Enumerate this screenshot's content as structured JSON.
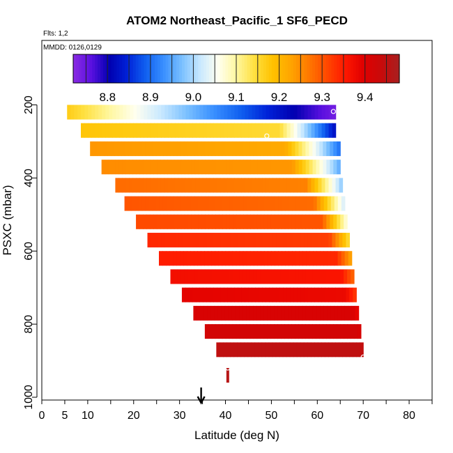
{
  "chart_data": {
    "type": "heatmap",
    "title": "ATOM2 Northeast_Pacific_1 SF6_PECD",
    "flights_label": "Flts: 1,2",
    "mmdd_label": "MMDD: 0126,0129",
    "xlabel": "Latitude (deg N)",
    "ylabel": "PSXC (mbar)",
    "xlim": [
      0,
      85
    ],
    "ylim": [
      1000,
      0
    ],
    "x_major_ticks": [
      0,
      5,
      10,
      20,
      30,
      40,
      50,
      60,
      70,
      80
    ],
    "x_minor_ticks": [
      15,
      25,
      35,
      45,
      55,
      65,
      75,
      85
    ],
    "y_ticks": [
      200,
      400,
      600,
      800,
      1000
    ],
    "colorbar": {
      "range": [
        8.72,
        9.48
      ],
      "tick_values": [
        8.8,
        8.9,
        9.0,
        9.1,
        9.2,
        9.3,
        9.4
      ],
      "tick_labels": [
        "8.8",
        "8.9",
        "9.0",
        "9.1",
        "9.2",
        "9.3",
        "9.4"
      ],
      "colors": [
        "#8a2be2",
        "#5a10e0",
        "#0000b0",
        "#0022d8",
        "#1060f0",
        "#3a90ff",
        "#7ac0ff",
        "#c8e8ff",
        "#fffff0",
        "#fff7a0",
        "#ffe040",
        "#ffc200",
        "#ffa500",
        "#ff7800",
        "#ff4800",
        "#ff1800",
        "#e00000",
        "#c80a0a",
        "#a82020"
      ]
    },
    "arrow_latitude": 34.7,
    "rows": [
      {
        "p": 220,
        "lat_start": 5.5,
        "lat_end": 64,
        "value_start": 9.17,
        "value_mid": 8.95,
        "value_end": 8.74,
        "transition": 0.5
      },
      {
        "p": 270,
        "lat_start": 8.5,
        "lat_end": 64,
        "value_start": 9.18,
        "value_mid": 9.15,
        "value_end": 8.82,
        "transition": 0.78
      },
      {
        "p": 320,
        "lat_start": 10.5,
        "lat_end": 65,
        "value_start": 9.24,
        "value_mid": 9.22,
        "value_end": 8.9,
        "transition": 0.78
      },
      {
        "p": 370,
        "lat_start": 13,
        "lat_end": 65,
        "value_start": 9.25,
        "value_mid": 9.24,
        "value_end": 8.95,
        "transition": 0.8
      },
      {
        "p": 420,
        "lat_start": 16,
        "lat_end": 65.5,
        "value_start": 9.28,
        "value_mid": 9.26,
        "value_end": 8.98,
        "transition": 0.84
      },
      {
        "p": 470,
        "lat_start": 18,
        "lat_end": 66,
        "value_start": 9.3,
        "value_mid": 9.28,
        "value_end": 9.02,
        "transition": 0.86
      },
      {
        "p": 520,
        "lat_start": 20.5,
        "lat_end": 66.5,
        "value_start": 9.31,
        "value_mid": 9.3,
        "value_end": 9.06,
        "transition": 0.88
      },
      {
        "p": 570,
        "lat_start": 23,
        "lat_end": 67,
        "value_start": 9.34,
        "value_mid": 9.32,
        "value_end": 9.14,
        "transition": 0.9
      },
      {
        "p": 620,
        "lat_start": 25.5,
        "lat_end": 67.5,
        "value_start": 9.35,
        "value_mid": 9.34,
        "value_end": 9.22,
        "transition": 0.92
      },
      {
        "p": 670,
        "lat_start": 28,
        "lat_end": 68,
        "value_start": 9.37,
        "value_mid": 9.36,
        "value_end": 9.28,
        "transition": 0.93
      },
      {
        "p": 720,
        "lat_start": 30.5,
        "lat_end": 68.5,
        "value_start": 9.39,
        "value_mid": 9.38,
        "value_end": 9.32,
        "transition": 0.94
      },
      {
        "p": 770,
        "lat_start": 33,
        "lat_end": 69,
        "value_start": 9.41,
        "value_mid": 9.41,
        "value_end": 9.38,
        "transition": 0.96
      },
      {
        "p": 820,
        "lat_start": 35.5,
        "lat_end": 69.5,
        "value_start": 9.42,
        "value_mid": 9.42,
        "value_end": 9.41,
        "transition": 0.97
      },
      {
        "p": 870,
        "lat_start": 38,
        "lat_end": 70,
        "value_start": 9.45,
        "value_mid": 9.45,
        "value_end": 9.44,
        "transition": 0.98
      }
    ],
    "stem": {
      "lat": 40.5,
      "p_top": 920,
      "p_bottom": 960,
      "value": 9.46
    },
    "open_circles": [
      {
        "lat": 63.5,
        "p": 218
      },
      {
        "lat": 49,
        "p": 285
      },
      {
        "lat": 70,
        "p": 890
      },
      {
        "lat": 40.5,
        "p": 920
      }
    ]
  }
}
